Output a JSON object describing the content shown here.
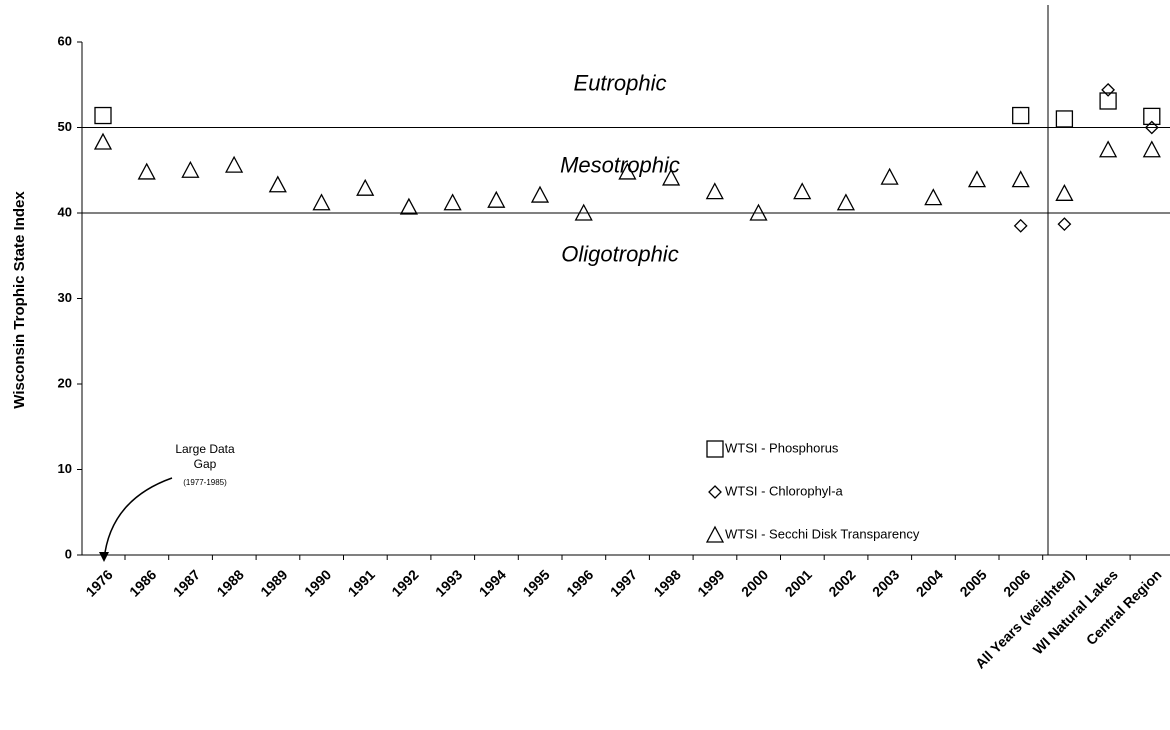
{
  "chart_data": {
    "type": "scatter",
    "y_label": "Wisconsin Trophic State Index",
    "categories": [
      "1976",
      "1986",
      "1987",
      "1988",
      "1989",
      "1990",
      "1991",
      "1992",
      "1993",
      "1994",
      "1995",
      "1996",
      "1997",
      "1998",
      "1999",
      "2000",
      "2001",
      "2002",
      "2003",
      "2004",
      "2005",
      "2006",
      "All Years (weighted)",
      "WI Natural Lakes",
      "Central Region"
    ],
    "series": [
      {
        "name": "WTSI - Phosphorus",
        "marker": "square",
        "color": "#000000",
        "values": [
          51.4,
          null,
          null,
          null,
          null,
          null,
          null,
          null,
          null,
          null,
          null,
          null,
          null,
          null,
          null,
          null,
          null,
          null,
          null,
          null,
          null,
          51.4,
          51,
          53.1,
          51.3
        ]
      },
      {
        "name": "WTSI - Chlorophyl-a",
        "marker": "diamond",
        "color": "#000000",
        "values": [
          null,
          null,
          null,
          null,
          null,
          null,
          null,
          null,
          null,
          null,
          null,
          null,
          null,
          null,
          null,
          null,
          null,
          null,
          null,
          null,
          null,
          38.5,
          38.7,
          54.4,
          50
        ]
      },
      {
        "name": "WTSI - Secchi Disk Transparency",
        "marker": "triangle",
        "color": "#000000",
        "values": [
          48.3,
          44.8,
          45,
          45.6,
          43.3,
          41.2,
          42.9,
          40.7,
          41.2,
          41.5,
          42.1,
          40,
          44.8,
          44.1,
          42.5,
          40,
          42.5,
          41.2,
          44.2,
          41.8,
          43.9,
          43.9,
          42.3,
          47.4,
          47.4
        ]
      }
    ],
    "ylim": [
      0,
      60
    ],
    "yticks": [
      0,
      10,
      20,
      30,
      40,
      50,
      60
    ],
    "grid": false,
    "reference_lines": [
      50,
      40
    ],
    "zones": [
      {
        "label": "Eutrophic",
        "y": 55
      },
      {
        "label": "Mesotrophic",
        "y": 45.4
      },
      {
        "label": "Oligotrophic",
        "y": 35
      }
    ],
    "annotation": {
      "lines": [
        "Large Data",
        "Gap"
      ],
      "note": "(1977-1985)"
    }
  }
}
